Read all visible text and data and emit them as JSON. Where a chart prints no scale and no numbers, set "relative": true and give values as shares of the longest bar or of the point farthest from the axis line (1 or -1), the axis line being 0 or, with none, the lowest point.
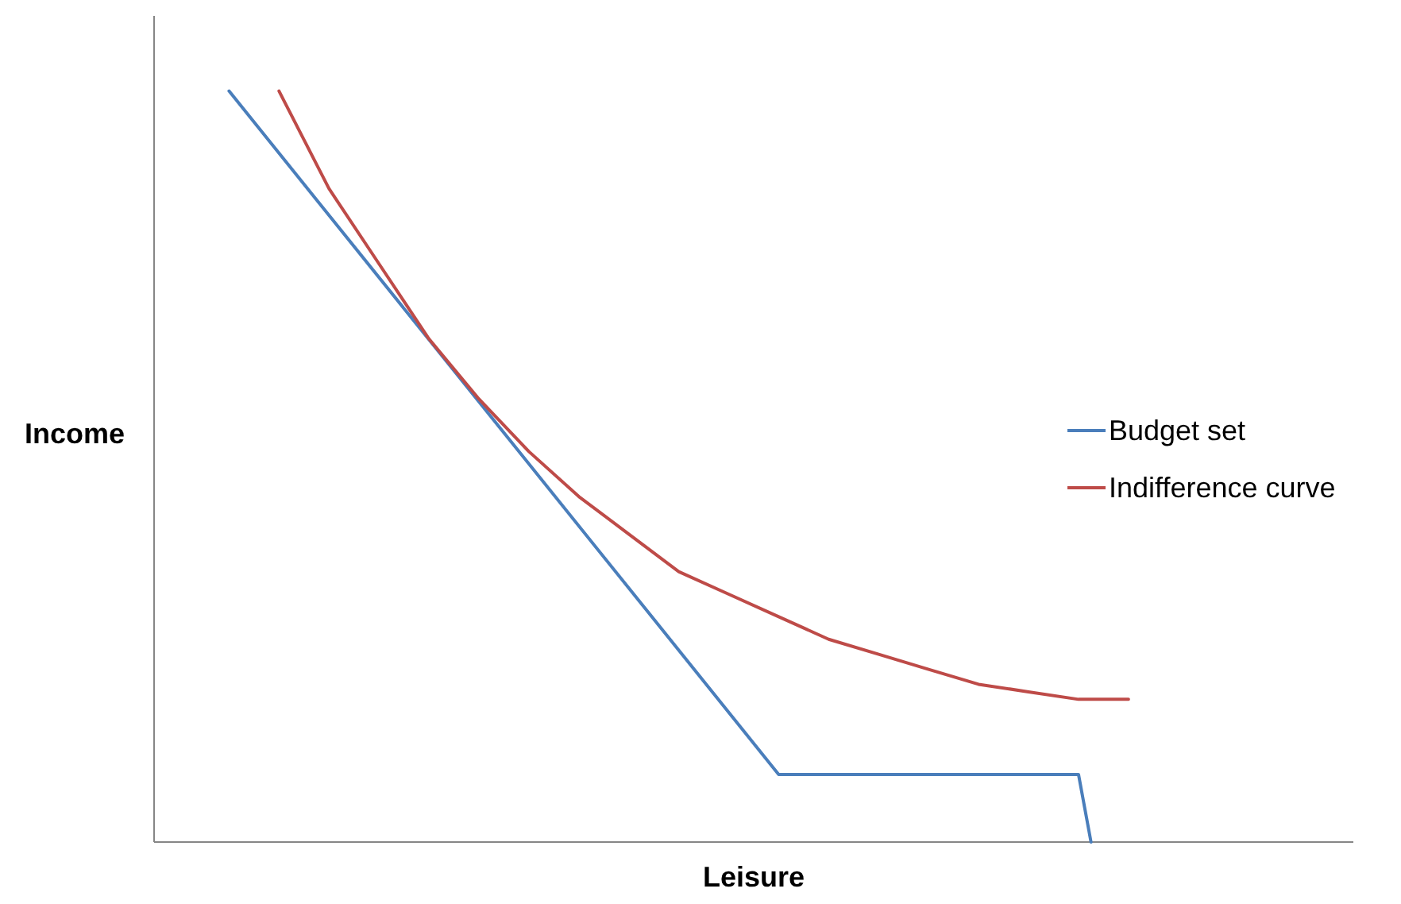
{
  "chart_data": {
    "type": "line",
    "xlabel": "Leisure",
    "ylabel": "Income",
    "relative": true,
    "legend": "right",
    "categories": [
      null,
      null,
      null,
      null,
      null,
      null,
      null,
      null,
      null,
      null,
      null,
      null,
      null,
      null,
      null,
      null,
      null,
      null,
      null,
      null,
      null,
      null,
      null,
      null,
      null,
      null,
      null,
      null,
      null,
      null,
      null,
      null,
      null,
      null,
      null,
      null,
      null,
      null,
      null,
      null,
      null,
      null,
      null,
      null,
      null,
      null,
      null,
      null,
      null,
      null,
      null,
      null,
      null,
      null,
      null,
      null,
      null,
      null,
      null,
      null,
      null,
      null,
      null,
      null,
      null,
      null,
      null,
      null,
      null,
      null,
      null,
      null,
      null
    ],
    "series": [
      {
        "name": "Budget set",
        "color": "#4a7ebb",
        "values": [
          1.0,
          null,
          null,
          null,
          null,
          null,
          null,
          null,
          null,
          null,
          null,
          null,
          null,
          null,
          null,
          null,
          null,
          null,
          null,
          null,
          null,
          null,
          null,
          null,
          null,
          null,
          null,
          null,
          null,
          null,
          null,
          null,
          null,
          null,
          null,
          null,
          null,
          null,
          null,
          null,
          null,
          null,
          null,
          null,
          0.09,
          null,
          null,
          null,
          null,
          null,
          null,
          null,
          null,
          null,
          null,
          null,
          null,
          null,
          null,
          null,
          null,
          null,
          null,
          null,
          null,
          null,
          null,
          null,
          0.09,
          0,
          null,
          null,
          null
        ]
      },
      {
        "name": "Indifference curve",
        "color": "#be4b48",
        "values": [
          null,
          null,
          null,
          null,
          1.0,
          null,
          null,
          null,
          0.87,
          null,
          null,
          null,
          0.77,
          null,
          null,
          null,
          0.67,
          null,
          null,
          null,
          0.59,
          null,
          null,
          null,
          0.52,
          null,
          null,
          null,
          0.46,
          null,
          null,
          null,
          0.41,
          null,
          null,
          null,
          0.36,
          null,
          null,
          null,
          0.33,
          null,
          null,
          null,
          0.3,
          null,
          null,
          null,
          0.27,
          null,
          null,
          null,
          0.25,
          null,
          null,
          null,
          0.23,
          null,
          null,
          null,
          0.21,
          null,
          null,
          null,
          0.2,
          null,
          null,
          null,
          0.19,
          null,
          null,
          null,
          0.19
        ]
      }
    ]
  }
}
